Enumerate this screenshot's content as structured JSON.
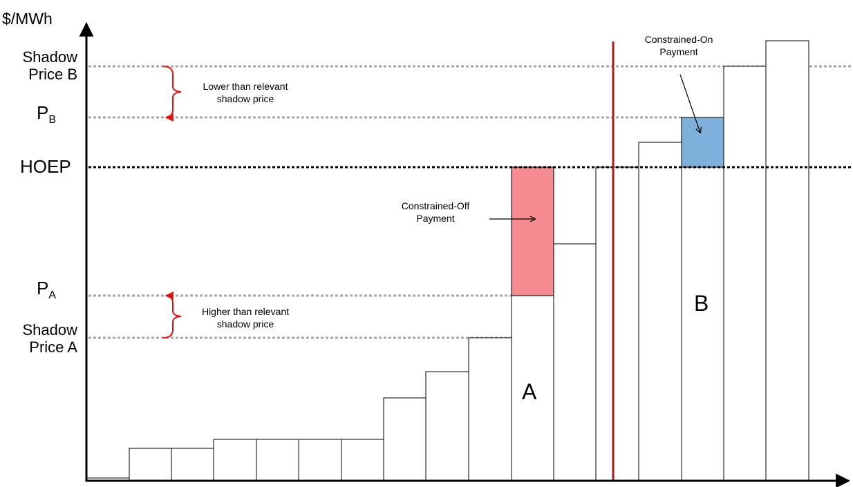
{
  "y_axis_label": "$/MWh",
  "price_labels": {
    "shadow_price_b": [
      "Shadow",
      "Price B"
    ],
    "pb_main": "P",
    "pb_sub": "B",
    "hoep": "HOEP",
    "pa_main": "P",
    "pa_sub": "A",
    "shadow_price_a": [
      "Shadow",
      "Price A"
    ]
  },
  "annotations": {
    "lower": [
      "Lower than relevant",
      "shadow price"
    ],
    "higher": [
      "Higher than relevant",
      "shadow price"
    ],
    "constrained_off": [
      "Constrained-Off",
      "Payment"
    ],
    "constrained_on": [
      "Constrained-On",
      "Payment"
    ]
  },
  "bar_labels": {
    "a": "A",
    "b": "B"
  },
  "colors": {
    "constrained_off_fill": "#f58a90",
    "constrained_on_fill": "#7fb0dc",
    "constraint_line": "#b31b1b",
    "bracket_arrow": "#e01010",
    "shadow_line": "#a6a6a6",
    "hoep_line": "#000000"
  }
}
